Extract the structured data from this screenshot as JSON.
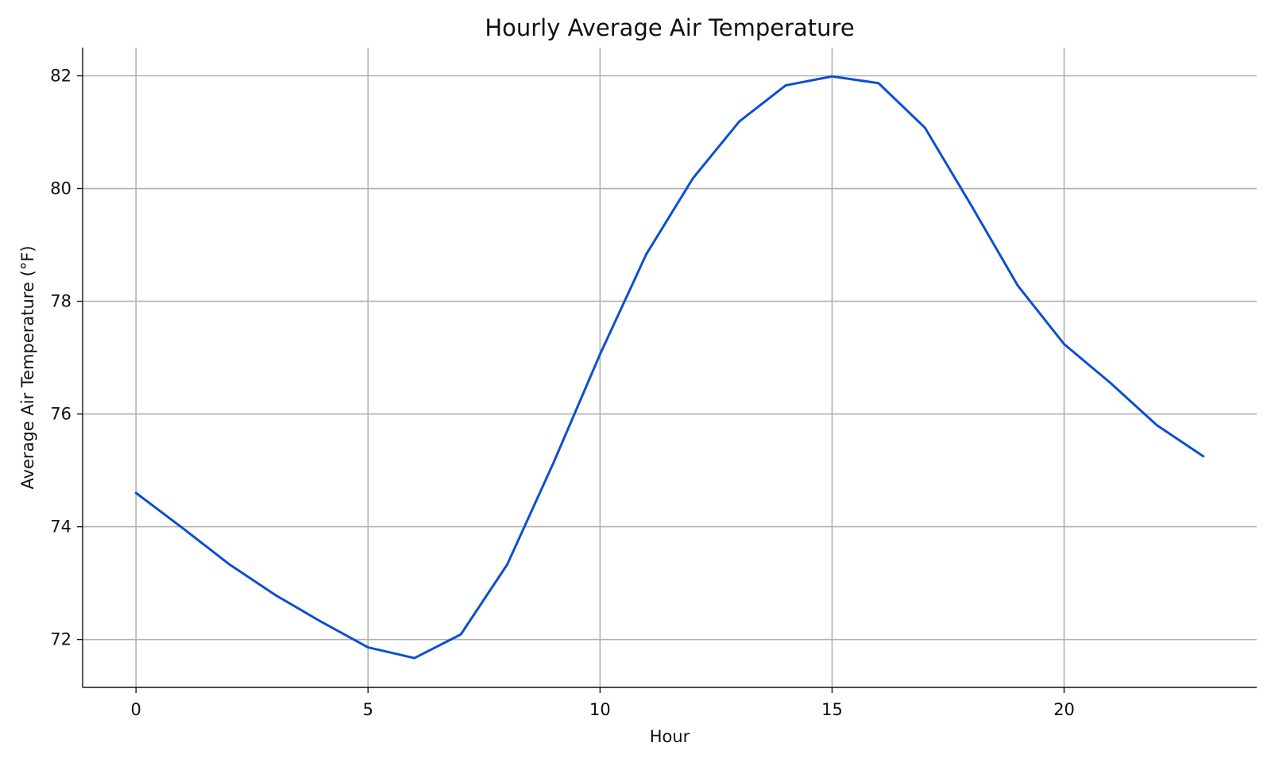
{
  "chart_data": {
    "type": "line",
    "title": "Hourly Average Air Temperature",
    "xlabel": "Hour",
    "ylabel": "Average Air Temperature (°F)",
    "xlim": [
      -1.15,
      24.15
    ],
    "ylim": [
      71.15,
      82.5
    ],
    "xticks": [
      0,
      5,
      10,
      15,
      20
    ],
    "yticks": [
      72,
      74,
      76,
      78,
      80,
      82
    ],
    "grid": true,
    "line_color": "#0b50d0",
    "series": [
      {
        "x": [
          0,
          1,
          2,
          3,
          4,
          5,
          6,
          7,
          8,
          9,
          10,
          11,
          12,
          13,
          14,
          15,
          16,
          17,
          18,
          19,
          20,
          21,
          22,
          23
        ],
        "values": [
          74.6,
          73.98,
          73.34,
          72.79,
          72.31,
          71.86,
          71.67,
          72.09,
          73.33,
          75.14,
          77.06,
          78.84,
          80.18,
          81.19,
          81.83,
          81.99,
          81.87,
          81.08,
          79.7,
          78.28,
          77.24,
          76.55,
          75.8,
          75.25
        ]
      }
    ]
  }
}
